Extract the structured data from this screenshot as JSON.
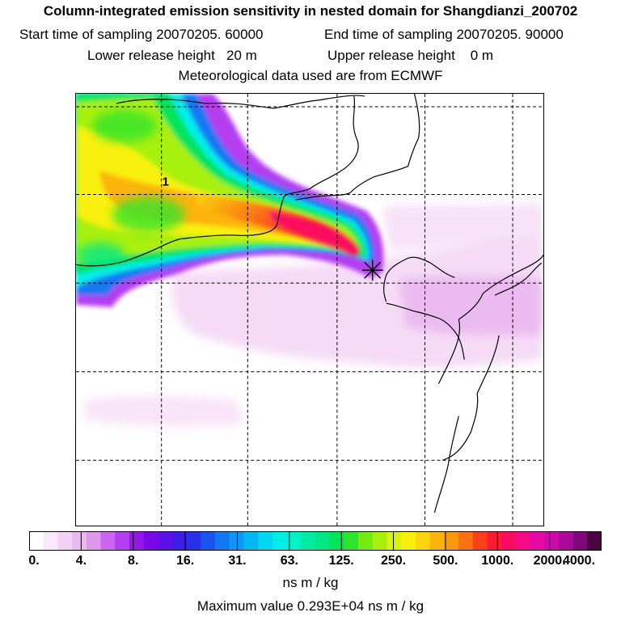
{
  "header": {
    "title": "Column-integrated emission sensitivity in nested domain for Shangdianzi_200702",
    "start_label": "Start time of sampling 20070205. 60000",
    "end_label": "End time of sampling 20070205. 90000",
    "lower_label": "Lower release height   20 m",
    "upper_label": "Upper release height    0 m",
    "met_label": "Meteorological data used are from ECMWF"
  },
  "map": {
    "marker_label": "1"
  },
  "legend": {
    "tick_labels": [
      "0.",
      "4.",
      "8.",
      "16.",
      "31.",
      "63.",
      "125.",
      "250.",
      "500.",
      "1000.",
      "2000.",
      "4000."
    ],
    "colors": [
      "#ffffff",
      "#f9e8f9",
      "#f2d2f4",
      "#eab8ee",
      "#de98ea",
      "#cc66ee",
      "#b43ef2",
      "#9418e8",
      "#7a08e6",
      "#5c12e6",
      "#3c1ee8",
      "#2a30ea",
      "#1c54f0",
      "#1278f4",
      "#0c98f6",
      "#04b8f4",
      "#00d8f2",
      "#00eee8",
      "#00f2c8",
      "#00eca4",
      "#00e886",
      "#00e45a",
      "#30e42c",
      "#74ec12",
      "#a8f00c",
      "#d8f40a",
      "#f8f00a",
      "#fcd40a",
      "#fcb40a",
      "#fc960c",
      "#fc7014",
      "#fc401a",
      "#fc1c30",
      "#fc0a60",
      "#f60a88",
      "#e60aa4",
      "#cc0aaa",
      "#aa0a9a",
      "#80087a",
      "#4a0240"
    ],
    "units": "ns m / kg",
    "max_value": "Maximum value  0.293E+04 ns m / kg"
  }
}
